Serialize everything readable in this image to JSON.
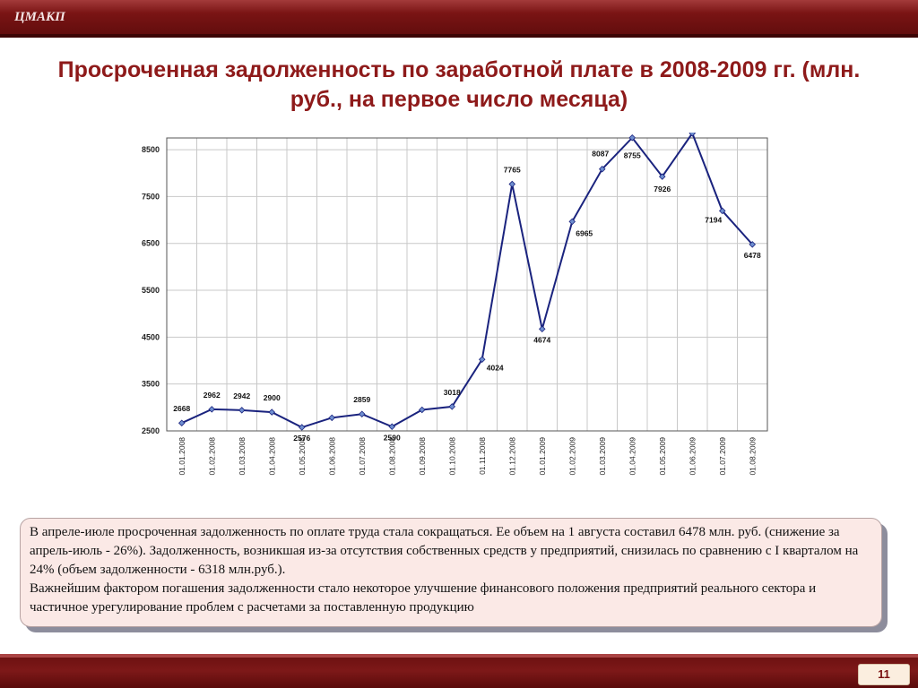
{
  "header": {
    "logo_text": "ЦМАКП"
  },
  "title": "Просроченная задолженность по заработной плате в 2008-2009 гг. (млн. руб., на первое число месяца)",
  "note": {
    "paragraph1": "В апреле-июле просроченная задолженность по оплате труда стала сокращаться. Ее объем на 1 августа составил  6478 млн. руб. (снижение за апрель-июль - 26%). Задолженность, возникшая из-за отсутствия собственных средств у предприятий, снизилась по сравнению с I кварталом на 24% (объем задолженности - 6318 млн.руб.).",
    "paragraph2": "Важнейшим фактором погашения задолженности стало некоторое улучшение финансового положения предприятий реального сектора и частичное урегулирование проблем с расчетами за поставленную продукцию"
  },
  "footer": {
    "page_number": "11"
  },
  "colors": {
    "title": "#8e1a1a",
    "line": "#1a237e",
    "marker": "#6f8fd0",
    "band": "#7a1414"
  },
  "chart_data": {
    "type": "line",
    "title": "",
    "xlabel": "",
    "ylabel": "",
    "ylim": [
      2500,
      8750
    ],
    "yticks": [
      2500,
      3500,
      4500,
      5500,
      6500,
      7500,
      8500
    ],
    "grid": true,
    "categories": [
      "01.01.2008",
      "01.02.2008",
      "01.03.2008",
      "01.04.2008",
      "01.05.2008",
      "01.06.2008",
      "01.07.2008",
      "01.08.2008",
      "01.09.2008",
      "01.10.2008",
      "01.11.2008",
      "01.12.2008",
      "01.01.2009",
      "01.02.2009",
      "01.03.2009",
      "01.04.2009",
      "01.05.2009",
      "01.06.2009",
      "01.07.2009",
      "01.08.2009"
    ],
    "values": [
      2668,
      2962,
      2942,
      2900,
      2576,
      2780,
      2859,
      2590,
      2950,
      3018,
      4024,
      7765,
      4674,
      6965,
      8087,
      8755,
      7926,
      8850,
      7194,
      6478
    ],
    "data_labels": [
      "2668",
      "2962",
      "2942",
      "2900",
      "2576",
      "",
      "2859",
      "2590",
      "",
      "3018",
      "4024",
      "7765",
      "4674",
      "6965",
      "8087",
      "8755",
      "7926",
      "",
      "7194",
      "6478"
    ]
  }
}
